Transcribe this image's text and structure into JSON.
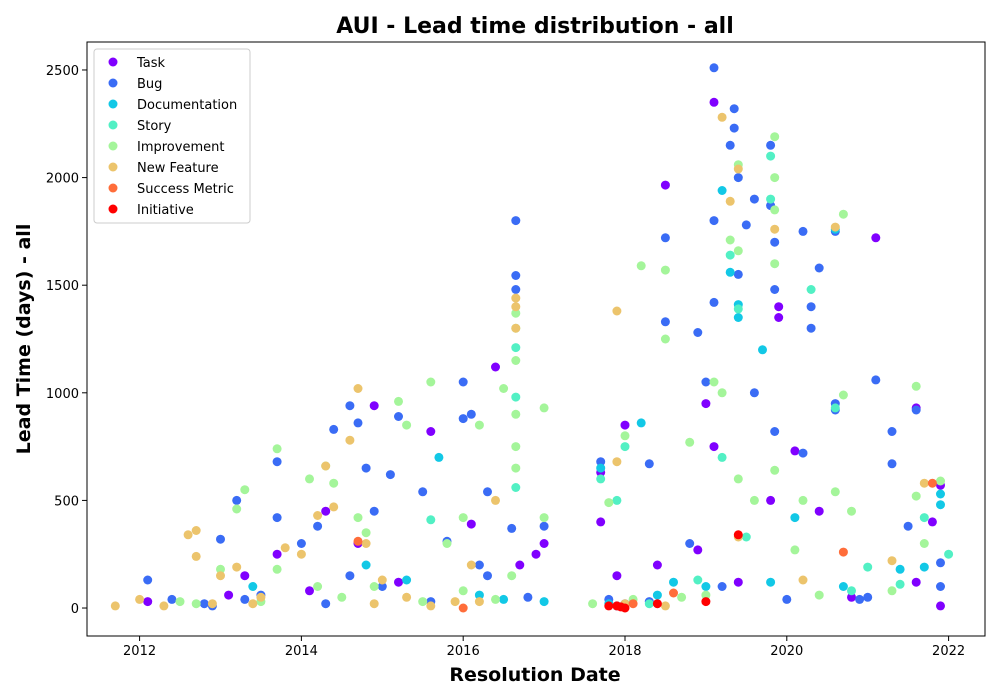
{
  "chart_data": {
    "type": "scatter",
    "title": "AUI - Lead time distribution - all",
    "xlabel": "Resolution Date",
    "ylabel": "Lead Time (days) - all",
    "xlim": [
      2011.35,
      2022.45
    ],
    "ylim": [
      -130,
      2630
    ],
    "xticks": [
      2012,
      2014,
      2016,
      2018,
      2020,
      2022
    ],
    "yticks": [
      0,
      500,
      1000,
      1500,
      2000,
      2500
    ],
    "grid": false,
    "legend_position": "top-left",
    "series": [
      {
        "name": "Task",
        "color": "#8000ff",
        "points": [
          [
            2012.1,
            30
          ],
          [
            2013.3,
            150
          ],
          [
            2013.7,
            250
          ],
          [
            2014.3,
            450
          ],
          [
            2014.7,
            300
          ],
          [
            2014.9,
            940
          ],
          [
            2015.6,
            820
          ],
          [
            2016.1,
            390
          ],
          [
            2016.4,
            1120
          ],
          [
            2016.9,
            250
          ],
          [
            2017.0,
            300
          ],
          [
            2017.7,
            400
          ],
          [
            2017.7,
            630
          ],
          [
            2018.0,
            850
          ],
          [
            2018.5,
            1965
          ],
          [
            2018.4,
            200
          ],
          [
            2019.0,
            950
          ],
          [
            2019.1,
            2350
          ],
          [
            2019.1,
            750
          ],
          [
            2019.4,
            120
          ],
          [
            2019.9,
            1400
          ],
          [
            2019.9,
            1350
          ],
          [
            2020.1,
            730
          ],
          [
            2020.4,
            450
          ],
          [
            2021.1,
            1720
          ],
          [
            2021.6,
            930
          ],
          [
            2021.8,
            400
          ],
          [
            2021.9,
            570
          ],
          [
            2021.9,
            10
          ],
          [
            2021.6,
            120
          ],
          [
            2020.8,
            50
          ],
          [
            2019.8,
            500
          ],
          [
            2018.9,
            270
          ],
          [
            2017.9,
            150
          ],
          [
            2016.7,
            200
          ],
          [
            2015.2,
            120
          ],
          [
            2014.1,
            80
          ],
          [
            2013.1,
            60
          ]
        ]
      },
      {
        "name": "Bug",
        "color": "#3a6cf5",
        "points": [
          [
            2012.1,
            130
          ],
          [
            2012.4,
            40
          ],
          [
            2012.8,
            20
          ],
          [
            2013.0,
            320
          ],
          [
            2013.2,
            500
          ],
          [
            2013.5,
            60
          ],
          [
            2013.7,
            680
          ],
          [
            2013.7,
            420
          ],
          [
            2014.0,
            300
          ],
          [
            2014.2,
            380
          ],
          [
            2014.4,
            830
          ],
          [
            2014.6,
            940
          ],
          [
            2014.7,
            860
          ],
          [
            2014.8,
            650
          ],
          [
            2014.9,
            450
          ],
          [
            2015.1,
            620
          ],
          [
            2015.2,
            890
          ],
          [
            2015.5,
            540
          ],
          [
            2015.8,
            310
          ],
          [
            2016.0,
            880
          ],
          [
            2016.0,
            1050
          ],
          [
            2016.1,
            900
          ],
          [
            2016.2,
            200
          ],
          [
            2016.3,
            540
          ],
          [
            2016.6,
            370
          ],
          [
            2016.65,
            1800
          ],
          [
            2016.65,
            1545
          ],
          [
            2016.65,
            1480
          ],
          [
            2017.0,
            380
          ],
          [
            2017.7,
            680
          ],
          [
            2017.8,
            40
          ],
          [
            2018.0,
            20
          ],
          [
            2018.3,
            670
          ],
          [
            2018.5,
            1720
          ],
          [
            2018.5,
            1330
          ],
          [
            2018.8,
            300
          ],
          [
            2018.9,
            1280
          ],
          [
            2019.0,
            1050
          ],
          [
            2019.1,
            2510
          ],
          [
            2019.1,
            1800
          ],
          [
            2019.1,
            1420
          ],
          [
            2019.3,
            2150
          ],
          [
            2019.35,
            2320
          ],
          [
            2019.35,
            2230
          ],
          [
            2019.4,
            2000
          ],
          [
            2019.4,
            1550
          ],
          [
            2019.5,
            1780
          ],
          [
            2019.6,
            1900
          ],
          [
            2019.6,
            1000
          ],
          [
            2019.8,
            2150
          ],
          [
            2019.8,
            1870
          ],
          [
            2019.85,
            1700
          ],
          [
            2019.85,
            1480
          ],
          [
            2019.85,
            820
          ],
          [
            2020.0,
            40
          ],
          [
            2020.2,
            1750
          ],
          [
            2020.2,
            720
          ],
          [
            2020.3,
            1300
          ],
          [
            2020.3,
            1400
          ],
          [
            2020.4,
            1580
          ],
          [
            2020.6,
            1750
          ],
          [
            2020.6,
            950
          ],
          [
            2020.6,
            920
          ],
          [
            2021.0,
            50
          ],
          [
            2021.1,
            1060
          ],
          [
            2021.3,
            820
          ],
          [
            2021.3,
            670
          ],
          [
            2021.5,
            380
          ],
          [
            2021.6,
            920
          ],
          [
            2021.9,
            210
          ],
          [
            2021.9,
            100
          ],
          [
            2020.9,
            40
          ],
          [
            2019.2,
            100
          ],
          [
            2018.3,
            30
          ],
          [
            2017.9,
            10
          ],
          [
            2016.8,
            50
          ],
          [
            2015.6,
            30
          ],
          [
            2014.3,
            20
          ],
          [
            2013.3,
            40
          ],
          [
            2012.9,
            10
          ],
          [
            2015.0,
            100
          ],
          [
            2016.3,
            150
          ],
          [
            2014.6,
            150
          ]
        ]
      },
      {
        "name": "Documentation",
        "color": "#12c8e6",
        "points": [
          [
            2013.4,
            100
          ],
          [
            2014.8,
            200
          ],
          [
            2015.3,
            130
          ],
          [
            2015.7,
            700
          ],
          [
            2016.2,
            60
          ],
          [
            2016.5,
            40
          ],
          [
            2017.0,
            30
          ],
          [
            2017.7,
            650
          ],
          [
            2017.8,
            20
          ],
          [
            2018.2,
            860
          ],
          [
            2018.4,
            60
          ],
          [
            2018.6,
            120
          ],
          [
            2019.0,
            100
          ],
          [
            2019.2,
            1940
          ],
          [
            2019.3,
            1560
          ],
          [
            2019.4,
            1410
          ],
          [
            2019.4,
            1350
          ],
          [
            2019.7,
            1200
          ],
          [
            2019.8,
            120
          ],
          [
            2020.1,
            420
          ],
          [
            2020.6,
            1760
          ],
          [
            2020.7,
            100
          ],
          [
            2021.4,
            180
          ],
          [
            2021.7,
            190
          ],
          [
            2021.9,
            480
          ],
          [
            2021.9,
            530
          ]
        ]
      },
      {
        "name": "Story",
        "color": "#52f0c4",
        "points": [
          [
            2015.6,
            410
          ],
          [
            2016.65,
            1210
          ],
          [
            2016.65,
            980
          ],
          [
            2016.65,
            560
          ],
          [
            2017.7,
            600
          ],
          [
            2017.9,
            500
          ],
          [
            2018.0,
            750
          ],
          [
            2018.3,
            20
          ],
          [
            2018.9,
            130
          ],
          [
            2019.2,
            700
          ],
          [
            2019.3,
            1640
          ],
          [
            2019.4,
            1390
          ],
          [
            2019.5,
            330
          ],
          [
            2019.8,
            2100
          ],
          [
            2019.8,
            1900
          ],
          [
            2020.3,
            1480
          ],
          [
            2020.6,
            930
          ],
          [
            2020.8,
            80
          ],
          [
            2021.0,
            190
          ],
          [
            2021.4,
            110
          ],
          [
            2021.7,
            420
          ],
          [
            2022.0,
            250
          ]
        ]
      },
      {
        "name": "Improvement",
        "color": "#a4f59a",
        "points": [
          [
            2012.5,
            30
          ],
          [
            2013.0,
            180
          ],
          [
            2013.2,
            460
          ],
          [
            2013.3,
            550
          ],
          [
            2013.7,
            740
          ],
          [
            2013.7,
            180
          ],
          [
            2014.1,
            600
          ],
          [
            2014.3,
            660
          ],
          [
            2014.4,
            580
          ],
          [
            2014.7,
            420
          ],
          [
            2014.8,
            350
          ],
          [
            2015.2,
            960
          ],
          [
            2015.3,
            850
          ],
          [
            2015.6,
            1050
          ],
          [
            2015.8,
            300
          ],
          [
            2016.0,
            420
          ],
          [
            2016.2,
            850
          ],
          [
            2016.5,
            1020
          ],
          [
            2016.6,
            150
          ],
          [
            2016.65,
            1370
          ],
          [
            2016.65,
            1300
          ],
          [
            2016.65,
            1150
          ],
          [
            2016.65,
            900
          ],
          [
            2016.65,
            750
          ],
          [
            2016.65,
            650
          ],
          [
            2017.0,
            930
          ],
          [
            2017.0,
            420
          ],
          [
            2017.8,
            490
          ],
          [
            2018.0,
            800
          ],
          [
            2018.2,
            1590
          ],
          [
            2018.5,
            1570
          ],
          [
            2018.5,
            1250
          ],
          [
            2018.8,
            770
          ],
          [
            2019.1,
            1050
          ],
          [
            2019.2,
            1000
          ],
          [
            2019.3,
            1710
          ],
          [
            2019.4,
            2060
          ],
          [
            2019.4,
            1660
          ],
          [
            2019.4,
            600
          ],
          [
            2019.6,
            500
          ],
          [
            2019.85,
            2190
          ],
          [
            2019.85,
            2000
          ],
          [
            2019.85,
            1850
          ],
          [
            2019.85,
            1600
          ],
          [
            2019.85,
            640
          ],
          [
            2020.1,
            270
          ],
          [
            2020.2,
            500
          ],
          [
            2020.6,
            540
          ],
          [
            2020.7,
            1830
          ],
          [
            2020.7,
            990
          ],
          [
            2020.8,
            450
          ],
          [
            2021.6,
            1030
          ],
          [
            2021.6,
            520
          ],
          [
            2021.7,
            300
          ],
          [
            2021.9,
            590
          ],
          [
            2021.3,
            80
          ],
          [
            2020.4,
            60
          ],
          [
            2019.0,
            60
          ],
          [
            2018.7,
            50
          ],
          [
            2018.1,
            40
          ],
          [
            2017.6,
            20
          ],
          [
            2016.4,
            40
          ],
          [
            2015.5,
            30
          ],
          [
            2014.5,
            50
          ],
          [
            2013.5,
            30
          ],
          [
            2012.7,
            20
          ],
          [
            2014.9,
            100
          ],
          [
            2016.0,
            80
          ],
          [
            2014.2,
            100
          ]
        ]
      },
      {
        "name": "New Feature",
        "color": "#ecc46c",
        "points": [
          [
            2011.7,
            10
          ],
          [
            2012.0,
            40
          ],
          [
            2012.3,
            10
          ],
          [
            2012.6,
            340
          ],
          [
            2012.7,
            360
          ],
          [
            2012.7,
            240
          ],
          [
            2013.0,
            150
          ],
          [
            2013.2,
            190
          ],
          [
            2013.5,
            50
          ],
          [
            2013.8,
            280
          ],
          [
            2014.0,
            250
          ],
          [
            2014.2,
            430
          ],
          [
            2014.3,
            660
          ],
          [
            2014.4,
            470
          ],
          [
            2014.6,
            780
          ],
          [
            2014.7,
            1020
          ],
          [
            2014.8,
            300
          ],
          [
            2015.0,
            130
          ],
          [
            2015.3,
            50
          ],
          [
            2015.9,
            30
          ],
          [
            2016.1,
            200
          ],
          [
            2016.4,
            500
          ],
          [
            2016.65,
            1440
          ],
          [
            2016.65,
            1400
          ],
          [
            2016.65,
            1300
          ],
          [
            2017.9,
            1380
          ],
          [
            2017.9,
            680
          ],
          [
            2018.0,
            20
          ],
          [
            2018.5,
            10
          ],
          [
            2019.2,
            2280
          ],
          [
            2019.3,
            1890
          ],
          [
            2019.4,
            2040
          ],
          [
            2019.4,
            330
          ],
          [
            2019.85,
            1760
          ],
          [
            2020.2,
            130
          ],
          [
            2020.6,
            1770
          ],
          [
            2021.3,
            220
          ],
          [
            2021.7,
            580
          ],
          [
            2013.4,
            20
          ],
          [
            2014.9,
            20
          ],
          [
            2012.9,
            20
          ],
          [
            2016.2,
            30
          ],
          [
            2015.6,
            10
          ]
        ]
      },
      {
        "name": "Success Metric",
        "color": "#ff6d3a",
        "points": [
          [
            2014.7,
            310
          ],
          [
            2016.0,
            0
          ],
          [
            2018.6,
            70
          ],
          [
            2020.7,
            260
          ],
          [
            2021.8,
            580
          ],
          [
            2018.1,
            20
          ]
        ]
      },
      {
        "name": "Initiative",
        "color": "#ff0000",
        "points": [
          [
            2017.8,
            10
          ],
          [
            2017.9,
            10
          ],
          [
            2018.0,
            0
          ],
          [
            2018.4,
            20
          ],
          [
            2019.4,
            340
          ],
          [
            2019.0,
            30
          ],
          [
            2017.95,
            5
          ]
        ]
      }
    ]
  }
}
